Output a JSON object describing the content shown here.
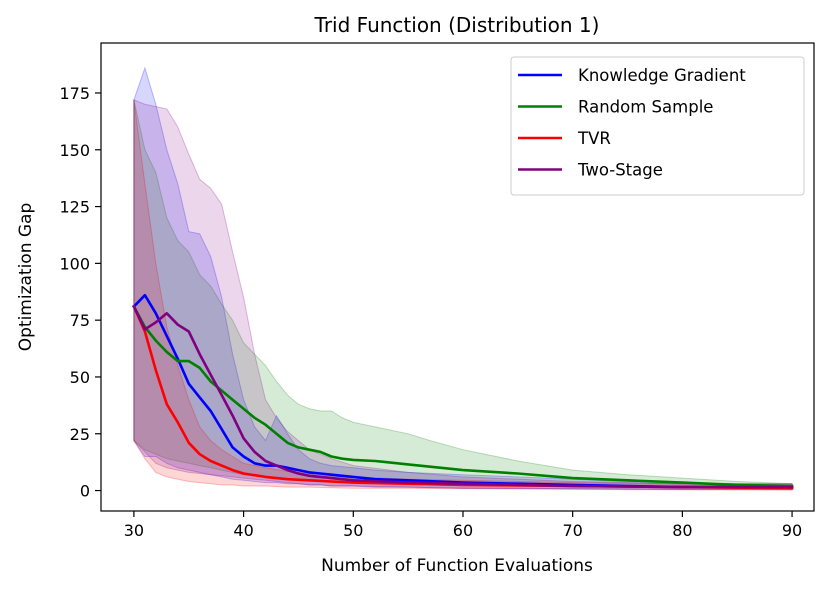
{
  "chart_data": {
    "type": "line",
    "title": "Trid Function (Distribution 1)",
    "xlabel": "Number of Function Evaluations",
    "ylabel": "Optimization Gap",
    "xlim": [
      27,
      92
    ],
    "ylim": [
      -9,
      197
    ],
    "xticks": [
      30,
      40,
      50,
      60,
      70,
      80,
      90
    ],
    "yticks": [
      0,
      25,
      50,
      75,
      100,
      125,
      150,
      175
    ],
    "grid": false,
    "legend_position": "top-right",
    "series": [
      {
        "name": "Knowledge Gradient",
        "color": "#0000ff",
        "x": [
          30,
          31,
          32,
          33,
          34,
          35,
          36,
          37,
          38,
          39,
          40,
          41,
          42,
          43,
          44,
          45,
          46,
          47,
          48,
          50,
          52,
          55,
          60,
          65,
          70,
          75,
          80,
          85,
          90
        ],
        "y": [
          81,
          86,
          78,
          68,
          58,
          47,
          41,
          35,
          27,
          19,
          15,
          12,
          11,
          11,
          10,
          9,
          8,
          7.5,
          7,
          6,
          5,
          4.5,
          3.5,
          3,
          2.5,
          2,
          1.5,
          1.5,
          1.5
        ],
        "upper": [
          172,
          186,
          170,
          150,
          135,
          114,
          113,
          103,
          85,
          60,
          40,
          28,
          22,
          33,
          25,
          18,
          14,
          12,
          11,
          10,
          9,
          8,
          7,
          6,
          5,
          4,
          3.5,
          3,
          3
        ],
        "lower": [
          22,
          15,
          15,
          12,
          10,
          9,
          8,
          7,
          6,
          5,
          4.5,
          4,
          3.5,
          3.5,
          3,
          3,
          2.5,
          2.5,
          2,
          2,
          1.5,
          1.5,
          1,
          1,
          0.8,
          0.6,
          0.5,
          0.5,
          0.5
        ]
      },
      {
        "name": "Random Sample",
        "color": "#008000",
        "x": [
          30,
          31,
          32,
          33,
          34,
          35,
          36,
          37,
          38,
          39,
          40,
          41,
          42,
          43,
          44,
          45,
          46,
          47,
          48,
          49,
          50,
          52,
          55,
          57,
          60,
          65,
          70,
          75,
          80,
          85,
          90
        ],
        "y": [
          81,
          72,
          66,
          61,
          57,
          57,
          54,
          48,
          44,
          40,
          36,
          32,
          29,
          25,
          21,
          19,
          18,
          17,
          15,
          14,
          13.5,
          13,
          11.5,
          10.5,
          9,
          7.5,
          5.5,
          4.5,
          3.5,
          2.5,
          2
        ],
        "upper": [
          172,
          150,
          140,
          120,
          110,
          105,
          95,
          90,
          82,
          75,
          65,
          60,
          55,
          48,
          42,
          38,
          36,
          35,
          35,
          32,
          30,
          28,
          25,
          22,
          18,
          13,
          9,
          7,
          5.5,
          4,
          3
        ],
        "lower": [
          22,
          18,
          16,
          14,
          13,
          12,
          11,
          10,
          9,
          8,
          7,
          6.5,
          6,
          5.5,
          5,
          5,
          4.5,
          4.5,
          4,
          4,
          3.5,
          3.5,
          3,
          3,
          2.5,
          2,
          1.8,
          1.5,
          1.2,
          1,
          1
        ]
      },
      {
        "name": "TVR",
        "color": "#ff0000",
        "x": [
          30,
          31,
          32,
          33,
          34,
          35,
          36,
          37,
          38,
          39,
          40,
          42,
          44,
          46,
          48,
          50,
          55,
          60,
          70,
          80,
          90
        ],
        "y": [
          81,
          70,
          53,
          38,
          30,
          21,
          16,
          13,
          11,
          9,
          7.5,
          6,
          5,
          4.5,
          4,
          3.5,
          3,
          2.5,
          2,
          1.5,
          1
        ],
        "upper": [
          172,
          135,
          100,
          72,
          55,
          40,
          28,
          22,
          18,
          15,
          12,
          10,
          8.5,
          7.5,
          7,
          6,
          5,
          4.5,
          3.5,
          3,
          2.5
        ],
        "lower": [
          22,
          14,
          8,
          6,
          5,
          4,
          3.5,
          3,
          2.5,
          2.5,
          2,
          2,
          1.5,
          1.5,
          1.2,
          1,
          1,
          0.8,
          0.5,
          0.3,
          0.2
        ]
      },
      {
        "name": "Two-Stage",
        "color": "#800080",
        "x": [
          30,
          31,
          32,
          33,
          34,
          35,
          36,
          37,
          38,
          39,
          40,
          41,
          42,
          43,
          44,
          45,
          46,
          47,
          48,
          50,
          55,
          60,
          70,
          80,
          90
        ],
        "y": [
          81,
          71,
          74,
          78,
          73,
          70,
          60,
          51,
          42,
          33,
          23,
          17,
          13,
          11,
          9,
          7.5,
          6.5,
          6,
          5.5,
          4.5,
          3.5,
          3,
          2,
          1.5,
          1.5
        ],
        "upper": [
          172,
          170,
          169,
          168,
          160,
          148,
          137,
          133,
          126,
          105,
          85,
          60,
          40,
          32,
          26,
          22,
          18,
          16,
          14,
          11,
          8,
          6,
          4,
          3,
          3
        ],
        "lower": [
          22,
          17,
          12,
          10,
          9,
          8,
          7.5,
          7,
          6.5,
          6,
          5.5,
          5,
          4.5,
          4,
          3.5,
          3,
          2.5,
          2.5,
          2,
          2,
          1.5,
          1,
          0.8,
          0.5,
          0.5
        ]
      }
    ]
  }
}
